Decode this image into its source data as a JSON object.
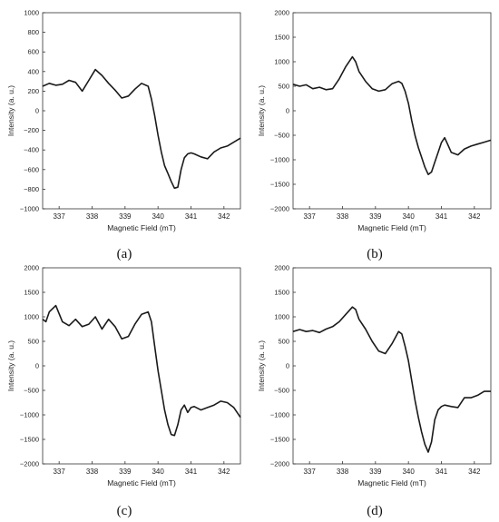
{
  "chart_data": [
    {
      "type": "line",
      "panel": "a",
      "xlabel": "Magnetic Field (mT)",
      "ylabel": "Intensity (a. u.)",
      "xlim": [
        336.5,
        342.5
      ],
      "ylim": [
        -1000,
        1000
      ],
      "xticks": [
        337,
        338,
        339,
        340,
        341,
        342
      ],
      "yticks": [
        -1000,
        -800,
        -600,
        -400,
        -200,
        0,
        200,
        400,
        600,
        800,
        1000
      ],
      "x": [
        336.5,
        336.7,
        336.9,
        337.1,
        337.3,
        337.5,
        337.7,
        337.9,
        338.1,
        338.3,
        338.5,
        338.7,
        338.9,
        339.1,
        339.3,
        339.5,
        339.7,
        339.8,
        339.9,
        340.0,
        340.1,
        340.2,
        340.3,
        340.4,
        340.5,
        340.6,
        340.7,
        340.8,
        340.9,
        341.0,
        341.1,
        341.3,
        341.5,
        341.7,
        341.9,
        342.1,
        342.3,
        342.5
      ],
      "values": [
        250,
        280,
        260,
        270,
        310,
        290,
        200,
        310,
        420,
        360,
        280,
        210,
        130,
        150,
        220,
        280,
        250,
        120,
        -50,
        -250,
        -420,
        -560,
        -640,
        -720,
        -790,
        -780,
        -600,
        -480,
        -440,
        -430,
        -440,
        -470,
        -490,
        -420,
        -380,
        -360,
        -320,
        -280
      ]
    },
    {
      "type": "line",
      "panel": "b",
      "xlabel": "Magnetic Field (mT)",
      "ylabel": "Intensity (a. u.)",
      "xlim": [
        336.5,
        342.5
      ],
      "ylim": [
        -2000,
        2000
      ],
      "xticks": [
        337,
        338,
        339,
        340,
        341,
        342
      ],
      "yticks": [
        -2000,
        -1500,
        -1000,
        -500,
        0,
        500,
        1000,
        1500,
        2000
      ],
      "x": [
        336.5,
        336.7,
        336.9,
        337.1,
        337.3,
        337.5,
        337.7,
        337.9,
        338.1,
        338.3,
        338.4,
        338.5,
        338.7,
        338.9,
        339.1,
        339.3,
        339.5,
        339.7,
        339.8,
        339.9,
        340.0,
        340.1,
        340.2,
        340.3,
        340.4,
        340.5,
        340.6,
        340.7,
        340.8,
        340.9,
        341.0,
        341.1,
        341.2,
        341.3,
        341.5,
        341.7,
        341.9,
        342.1,
        342.3,
        342.5
      ],
      "values": [
        540,
        500,
        530,
        450,
        480,
        430,
        450,
        650,
        900,
        1100,
        1000,
        800,
        600,
        450,
        400,
        430,
        550,
        600,
        560,
        400,
        150,
        -200,
        -500,
        -750,
        -950,
        -1150,
        -1300,
        -1250,
        -1050,
        -850,
        -650,
        -550,
        -700,
        -850,
        -900,
        -780,
        -720,
        -680,
        -640,
        -600
      ]
    },
    {
      "type": "line",
      "panel": "c",
      "xlabel": "Magnetic Field (mT)",
      "ylabel": "Intensity (a. u.)",
      "xlim": [
        336.5,
        342.5
      ],
      "ylim": [
        -2000,
        2000
      ],
      "xticks": [
        337,
        338,
        339,
        340,
        341,
        342
      ],
      "yticks": [
        -2000,
        -1500,
        -1000,
        -500,
        0,
        500,
        1000,
        1500,
        2000
      ],
      "x": [
        336.5,
        336.6,
        336.7,
        336.9,
        337.1,
        337.3,
        337.5,
        337.7,
        337.9,
        338.1,
        338.3,
        338.5,
        338.7,
        338.9,
        339.1,
        339.3,
        339.5,
        339.7,
        339.8,
        339.9,
        340.0,
        340.1,
        340.2,
        340.3,
        340.4,
        340.5,
        340.6,
        340.7,
        340.8,
        340.9,
        341.0,
        341.1,
        341.3,
        341.5,
        341.7,
        341.9,
        342.1,
        342.3,
        342.5
      ],
      "values": [
        950,
        900,
        1100,
        1230,
        900,
        820,
        950,
        800,
        850,
        1000,
        750,
        950,
        800,
        550,
        600,
        850,
        1050,
        1100,
        900,
        400,
        -100,
        -500,
        -900,
        -1200,
        -1400,
        -1420,
        -1200,
        -900,
        -800,
        -950,
        -850,
        -830,
        -900,
        -850,
        -800,
        -720,
        -750,
        -850,
        -1050
      ]
    },
    {
      "type": "line",
      "panel": "d",
      "xlabel": "Magnetic Field (mT)",
      "ylabel": "Intensity (a. u.)",
      "xlim": [
        336.5,
        342.5
      ],
      "ylim": [
        -2000,
        2000
      ],
      "xticks": [
        337,
        338,
        339,
        340,
        341,
        342
      ],
      "yticks": [
        -2000,
        -1500,
        -1000,
        -500,
        0,
        500,
        1000,
        1500,
        2000
      ],
      "x": [
        336.5,
        336.7,
        336.9,
        337.1,
        337.3,
        337.5,
        337.7,
        337.9,
        338.1,
        338.3,
        338.4,
        338.5,
        338.7,
        338.9,
        339.1,
        339.3,
        339.5,
        339.7,
        339.8,
        339.9,
        340.0,
        340.1,
        340.2,
        340.3,
        340.4,
        340.5,
        340.6,
        340.7,
        340.8,
        340.9,
        341.0,
        341.1,
        341.3,
        341.5,
        341.7,
        341.9,
        342.1,
        342.3,
        342.5
      ],
      "values": [
        700,
        740,
        700,
        720,
        680,
        750,
        800,
        900,
        1050,
        1200,
        1150,
        950,
        750,
        500,
        300,
        250,
        450,
        700,
        650,
        400,
        100,
        -300,
        -700,
        -1050,
        -1350,
        -1600,
        -1760,
        -1550,
        -1100,
        -900,
        -830,
        -800,
        -830,
        -850,
        -650,
        -650,
        -600,
        -520,
        -520
      ]
    }
  ],
  "panel_labels": [
    "(a)",
    "(b)",
    "(c)",
    "(d)"
  ],
  "colors": {
    "line": "#1a1a1a",
    "axis": "#333333"
  }
}
